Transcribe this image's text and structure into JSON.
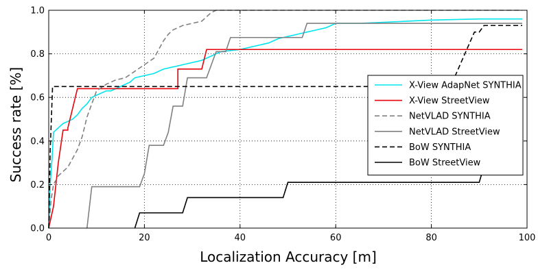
{
  "chart_data": {
    "type": "line",
    "title": "",
    "xlabel": "Localization Accuracy [m]",
    "ylabel": "Success rate [%]",
    "xlim": [
      0,
      100
    ],
    "ylim": [
      0.0,
      1.0
    ],
    "xticks": [
      0,
      20,
      40,
      60,
      80,
      100
    ],
    "yticks": [
      0.0,
      0.2,
      0.4,
      0.6,
      0.8,
      1.0
    ],
    "xtick_labels": [
      "0",
      "20",
      "40",
      "60",
      "80",
      "100"
    ],
    "ytick_labels": [
      "0.0",
      "0.2",
      "0.4",
      "0.6",
      "0.8",
      "1.0"
    ],
    "grid": true,
    "legend_position": "center-right",
    "series": [
      {
        "name": "X-View AdapNet SYNTHIA",
        "color": "#00e5ee",
        "dash": "solid",
        "points": [
          [
            0,
            0
          ],
          [
            0.3,
            0.2
          ],
          [
            0.7,
            0.32
          ],
          [
            1,
            0.44
          ],
          [
            2,
            0.46
          ],
          [
            3,
            0.48
          ],
          [
            4,
            0.49
          ],
          [
            5,
            0.5
          ],
          [
            6,
            0.52
          ],
          [
            7,
            0.55
          ],
          [
            8,
            0.57
          ],
          [
            9,
            0.6
          ],
          [
            10,
            0.61
          ],
          [
            11,
            0.62
          ],
          [
            12,
            0.63
          ],
          [
            13,
            0.63
          ],
          [
            14,
            0.64
          ],
          [
            15,
            0.65
          ],
          [
            16,
            0.66
          ],
          [
            17,
            0.67
          ],
          [
            18,
            0.69
          ],
          [
            20,
            0.7
          ],
          [
            22,
            0.71
          ],
          [
            24,
            0.73
          ],
          [
            26,
            0.74
          ],
          [
            28,
            0.75
          ],
          [
            30,
            0.76
          ],
          [
            32,
            0.77
          ],
          [
            34,
            0.79
          ],
          [
            36,
            0.81
          ],
          [
            38,
            0.815
          ],
          [
            40,
            0.82
          ],
          [
            42,
            0.83
          ],
          [
            44,
            0.84
          ],
          [
            46,
            0.85
          ],
          [
            48,
            0.87
          ],
          [
            50,
            0.88
          ],
          [
            52,
            0.89
          ],
          [
            54,
            0.9
          ],
          [
            56,
            0.91
          ],
          [
            58,
            0.92
          ],
          [
            60,
            0.94
          ],
          [
            65,
            0.94
          ],
          [
            70,
            0.945
          ],
          [
            75,
            0.95
          ],
          [
            80,
            0.955
          ],
          [
            90,
            0.96
          ],
          [
            99,
            0.96
          ]
        ]
      },
      {
        "name": "X-View StreetView",
        "color": "#e8000b",
        "dash": "solid",
        "points": [
          [
            0,
            0
          ],
          [
            1,
            0.1
          ],
          [
            2,
            0.3
          ],
          [
            3,
            0.45
          ],
          [
            4,
            0.45
          ],
          [
            4,
            0.46
          ],
          [
            5,
            0.55
          ],
          [
            6,
            0.64
          ],
          [
            27,
            0.64
          ],
          [
            27,
            0.73
          ],
          [
            32,
            0.73
          ],
          [
            33,
            0.82
          ],
          [
            99,
            0.82
          ]
        ]
      },
      {
        "name": "NetVLAD SYNTHIA",
        "color": "#808080",
        "dash": "dashed",
        "points": [
          [
            0,
            0
          ],
          [
            0.5,
            0.13
          ],
          [
            1,
            0.2
          ],
          [
            2,
            0.24
          ],
          [
            3,
            0.26
          ],
          [
            4,
            0.28
          ],
          [
            5,
            0.32
          ],
          [
            6,
            0.36
          ],
          [
            7,
            0.42
          ],
          [
            8,
            0.51
          ],
          [
            9,
            0.57
          ],
          [
            10,
            0.63
          ],
          [
            12,
            0.66
          ],
          [
            14,
            0.68
          ],
          [
            16,
            0.69
          ],
          [
            18,
            0.72
          ],
          [
            20,
            0.75
          ],
          [
            22,
            0.78
          ],
          [
            23,
            0.82
          ],
          [
            24,
            0.86
          ],
          [
            25,
            0.89
          ],
          [
            26,
            0.91
          ],
          [
            28,
            0.93
          ],
          [
            30,
            0.94
          ],
          [
            32,
            0.95
          ],
          [
            34,
            0.99
          ],
          [
            35,
            1.0
          ],
          [
            99,
            1.0
          ]
        ]
      },
      {
        "name": "NetVLAD StreetView",
        "color": "#808080",
        "dash": "solid",
        "points": [
          [
            8,
            0
          ],
          [
            9,
            0.19
          ],
          [
            19,
            0.19
          ],
          [
            20,
            0.25
          ],
          [
            21,
            0.38
          ],
          [
            24,
            0.38
          ],
          [
            25,
            0.44
          ],
          [
            26,
            0.56
          ],
          [
            28,
            0.56
          ],
          [
            29,
            0.69
          ],
          [
            33,
            0.69
          ],
          [
            34,
            0.75
          ],
          [
            35,
            0.81
          ],
          [
            37,
            0.81
          ],
          [
            38,
            0.875
          ],
          [
            53,
            0.875
          ],
          [
            54,
            0.94
          ],
          [
            99,
            0.94
          ]
        ]
      },
      {
        "name": "BoW SYNTHIA",
        "color": "#000000",
        "dash": "dashed",
        "points": [
          [
            0,
            0
          ],
          [
            0.3,
            0.35
          ],
          [
            0.8,
            0.65
          ],
          [
            84,
            0.65
          ],
          [
            85,
            0.7
          ],
          [
            86,
            0.75
          ],
          [
            87,
            0.8
          ],
          [
            88,
            0.85
          ],
          [
            89,
            0.9
          ],
          [
            90,
            0.9
          ],
          [
            91,
            0.93
          ],
          [
            99,
            0.93
          ]
        ]
      },
      {
        "name": "BoW StreetView",
        "color": "#000000",
        "dash": "solid",
        "points": [
          [
            18,
            0
          ],
          [
            19,
            0.07
          ],
          [
            28,
            0.07
          ],
          [
            29,
            0.14
          ],
          [
            49,
            0.14
          ],
          [
            50,
            0.21
          ],
          [
            90,
            0.21
          ],
          [
            91,
            0.285
          ],
          [
            96,
            0.285
          ],
          [
            97,
            0.36
          ],
          [
            99,
            0.36
          ]
        ]
      }
    ]
  }
}
